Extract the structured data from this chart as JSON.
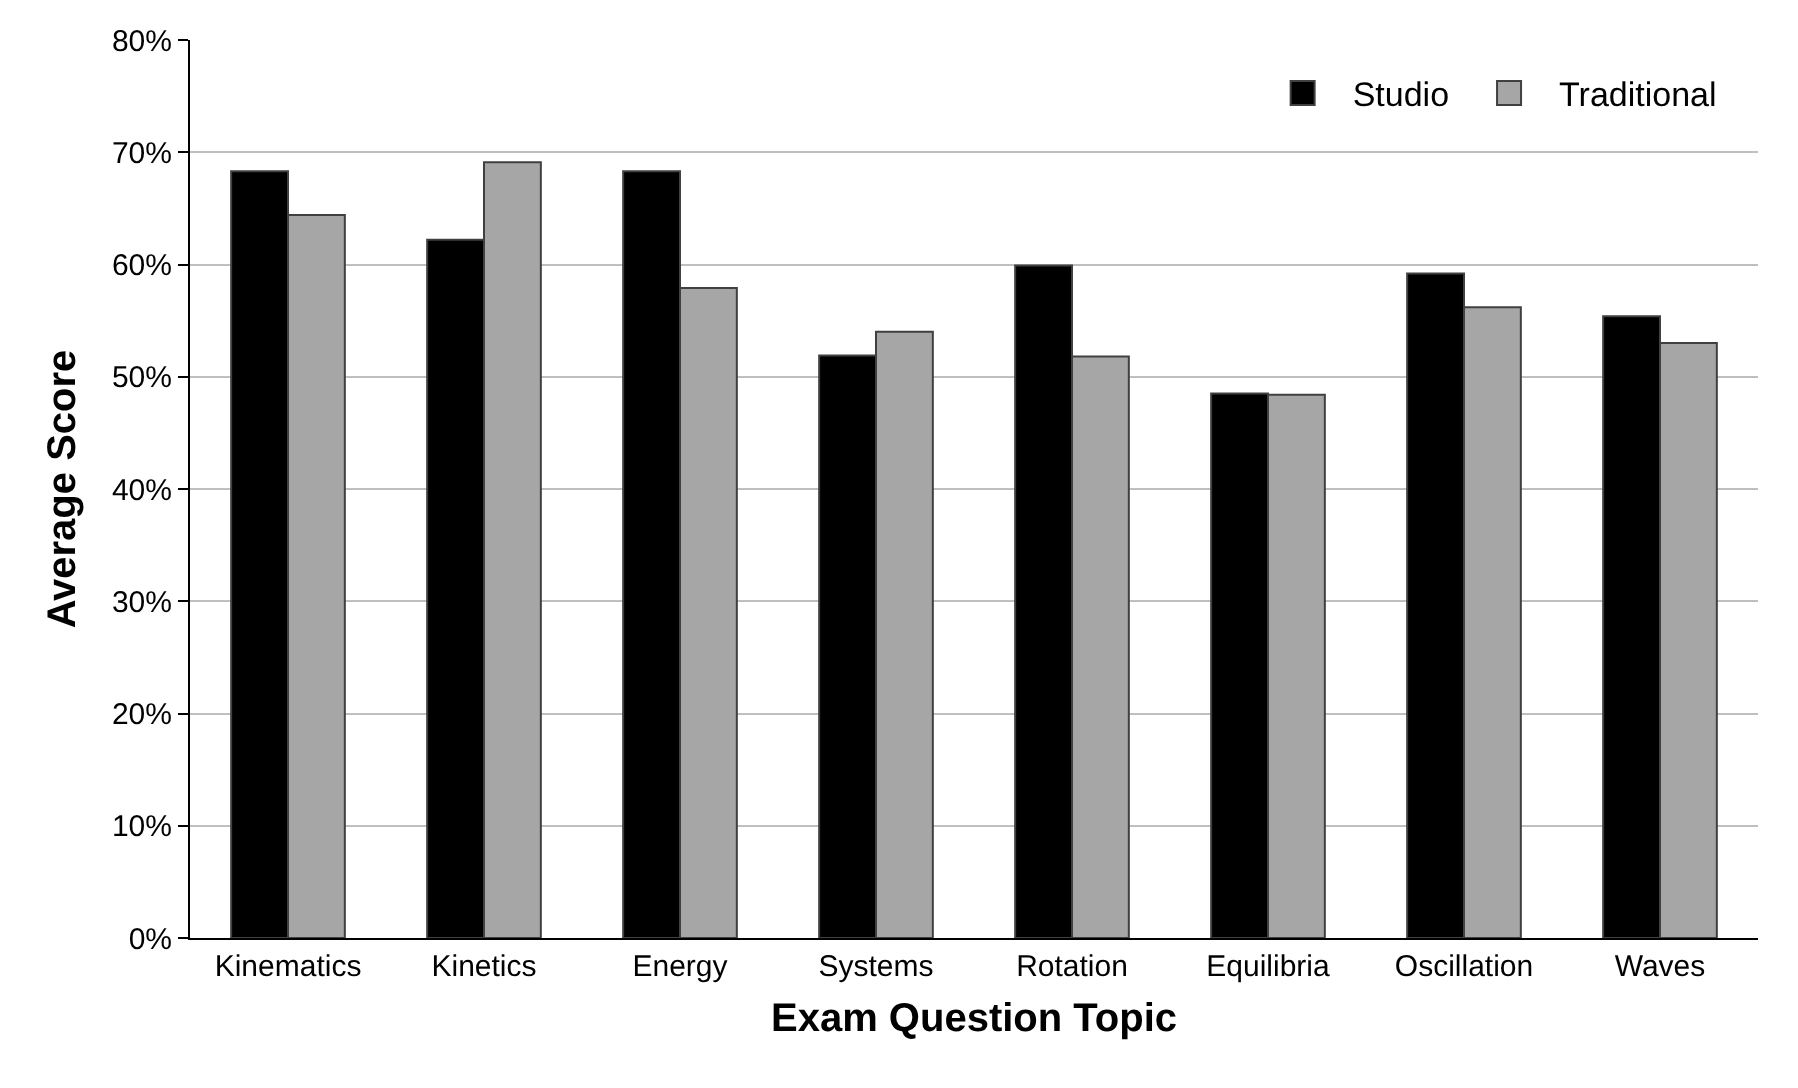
{
  "chart_data": {
    "type": "bar",
    "xlabel": "Exam Question Topic",
    "ylabel": "Average Score",
    "categories": [
      "Kinematics",
      "Kinetics",
      "Energy",
      "Systems",
      "Rotation",
      "Equilibria",
      "Oscillation",
      "Waves"
    ],
    "series": [
      {
        "name": "Studio",
        "color": "#000000",
        "values": [
          68.3,
          62.2,
          68.3,
          51.9,
          59.9,
          48.5,
          59.2,
          55.4
        ]
      },
      {
        "name": "Traditional",
        "color": "#a6a6a6",
        "values": [
          64.4,
          69.1,
          57.9,
          54.0,
          51.8,
          48.4,
          56.2,
          53.0
        ]
      }
    ],
    "ylim": [
      0,
      80
    ],
    "yticks": [
      {
        "value": 0,
        "label": "0%"
      },
      {
        "value": 10,
        "label": "10%"
      },
      {
        "value": 20,
        "label": "20%"
      },
      {
        "value": 30,
        "label": "30%"
      },
      {
        "value": 40,
        "label": "40%"
      },
      {
        "value": 50,
        "label": "50%"
      },
      {
        "value": 60,
        "label": "60%"
      },
      {
        "value": 70,
        "label": "70%"
      },
      {
        "value": 80,
        "label": "80%"
      }
    ],
    "grid": "y",
    "legend": "top right"
  }
}
